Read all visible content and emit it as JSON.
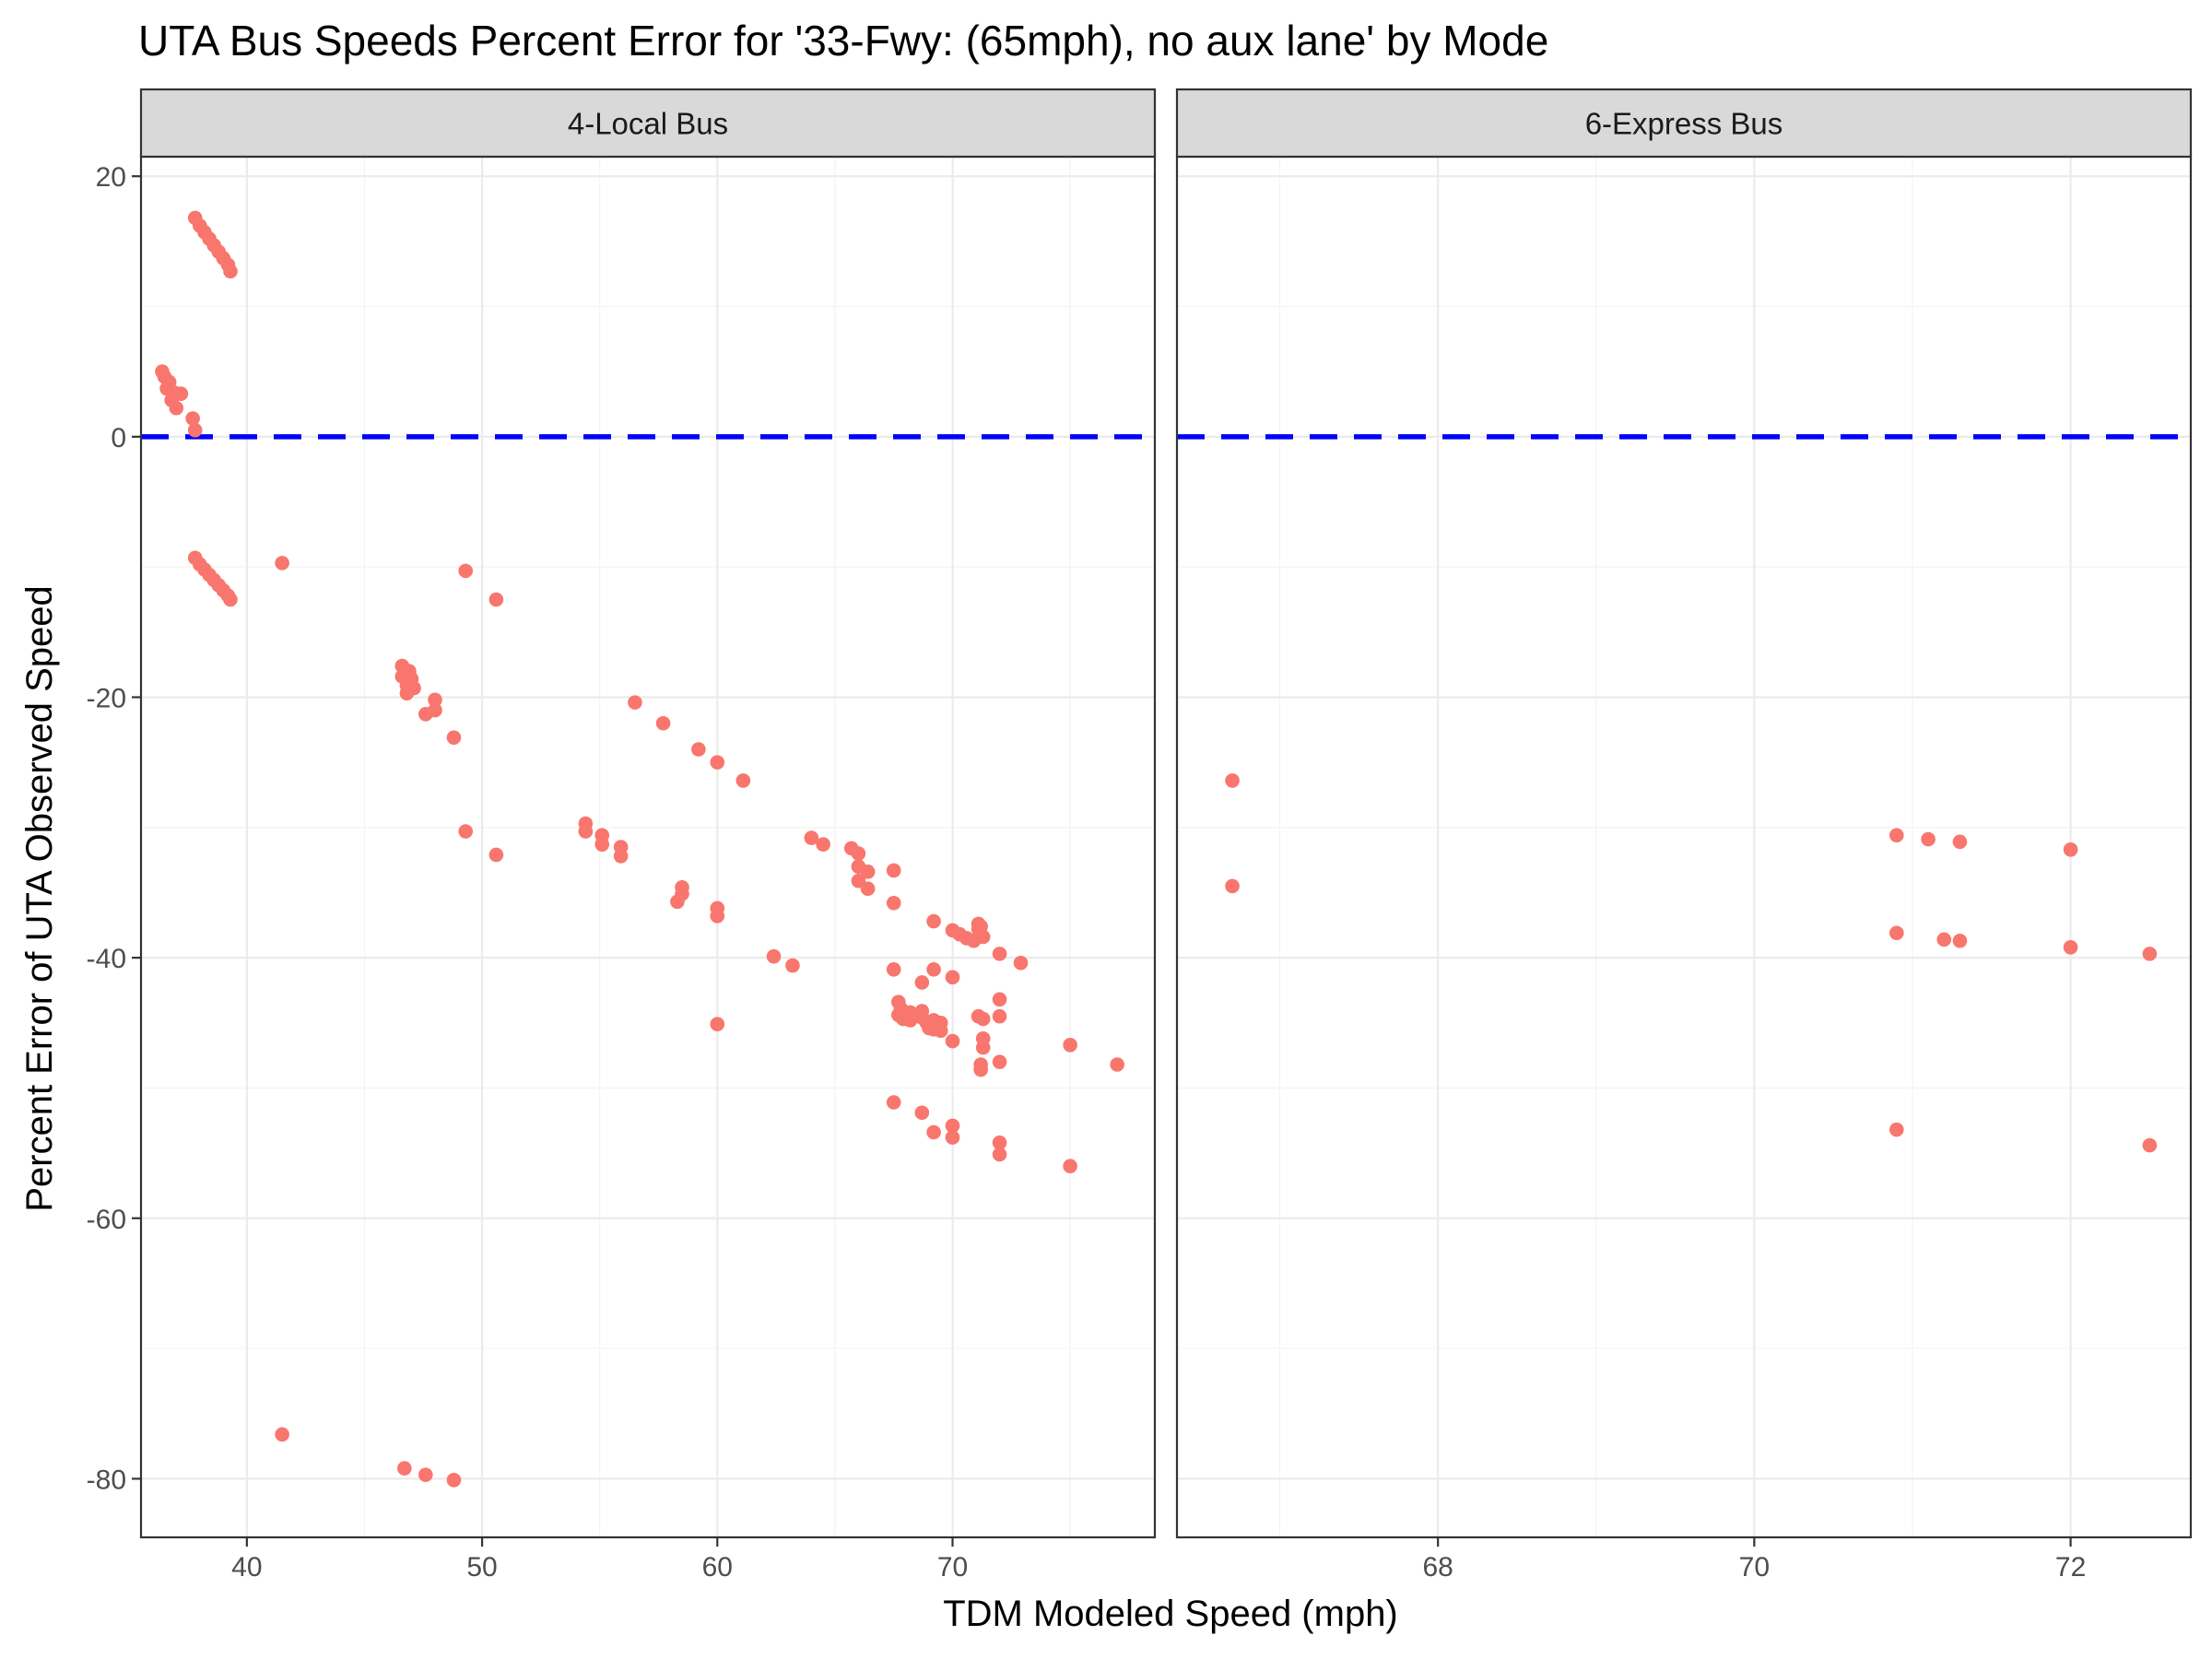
{
  "chart_data": {
    "type": "scatter",
    "title": "UTA Bus Speeds Percent Error for '33-Fwy: (65mph), no aux lane' by Mode",
    "xlabel": "TDM Modeled Speed (mph)",
    "ylabel": "Percent Error of UTA Observed Speed",
    "ylim": [
      -84.5,
      21.5
    ],
    "y_ticks": [
      20,
      0,
      -20,
      -40,
      -60,
      -80
    ],
    "reference_line": {
      "y": 0,
      "style": "dashed",
      "color": "#0000ff"
    },
    "point_color": "#f8766d",
    "grid": true,
    "legend": "none",
    "panels": [
      {
        "name": "4-Local Bus",
        "xlim": [
          35.5,
          78.6
        ],
        "x_ticks": [
          40,
          50,
          60,
          70
        ],
        "points": [
          [
            37.8,
            16.8
          ],
          [
            38.0,
            16.2
          ],
          [
            38.2,
            15.7
          ],
          [
            38.4,
            15.2
          ],
          [
            38.6,
            14.7
          ],
          [
            38.8,
            14.2
          ],
          [
            39.0,
            13.7
          ],
          [
            39.2,
            13.2
          ],
          [
            39.3,
            12.7
          ],
          [
            36.4,
            5.0
          ],
          [
            36.5,
            4.6
          ],
          [
            36.7,
            4.2
          ],
          [
            36.6,
            3.7
          ],
          [
            36.9,
            3.4
          ],
          [
            37.2,
            3.3
          ],
          [
            36.8,
            2.8
          ],
          [
            37.0,
            2.2
          ],
          [
            37.7,
            1.4
          ],
          [
            37.8,
            0.5
          ],
          [
            37.8,
            -9.3
          ],
          [
            38.0,
            -9.8
          ],
          [
            38.2,
            -10.2
          ],
          [
            38.4,
            -10.6
          ],
          [
            38.6,
            -11.0
          ],
          [
            38.8,
            -11.4
          ],
          [
            39.0,
            -11.8
          ],
          [
            39.2,
            -12.2
          ],
          [
            39.3,
            -12.5
          ],
          [
            41.5,
            -9.7
          ],
          [
            49.3,
            -10.3
          ],
          [
            50.6,
            -12.5
          ],
          [
            46.6,
            -17.6
          ],
          [
            46.6,
            -18.4
          ],
          [
            46.9,
            -18.0
          ],
          [
            47.0,
            -18.6
          ],
          [
            46.8,
            -19.1
          ],
          [
            47.1,
            -19.3
          ],
          [
            46.8,
            -19.7
          ],
          [
            47.6,
            -21.3
          ],
          [
            48.0,
            -20.2
          ],
          [
            48.0,
            -21.0
          ],
          [
            48.8,
            -23.1
          ],
          [
            49.3,
            -30.3
          ],
          [
            50.6,
            -32.1
          ],
          [
            54.4,
            -29.7
          ],
          [
            54.4,
            -30.3
          ],
          [
            55.1,
            -30.6
          ],
          [
            55.1,
            -31.3
          ],
          [
            55.9,
            -31.5
          ],
          [
            55.9,
            -32.2
          ],
          [
            56.5,
            -20.4
          ],
          [
            57.7,
            -22.0
          ],
          [
            59.2,
            -24.0
          ],
          [
            60.0,
            -25.0
          ],
          [
            61.1,
            -26.4
          ],
          [
            58.5,
            -34.6
          ],
          [
            58.5,
            -35.1
          ],
          [
            58.3,
            -35.7
          ],
          [
            60.0,
            -36.2
          ],
          [
            60.0,
            -36.8
          ],
          [
            60.0,
            -45.1
          ],
          [
            62.4,
            -39.9
          ],
          [
            63.2,
            -40.6
          ],
          [
            64.0,
            -30.8
          ],
          [
            64.5,
            -31.3
          ],
          [
            65.7,
            -31.6
          ],
          [
            66.0,
            -32.0
          ],
          [
            66.0,
            -33.0
          ],
          [
            66.4,
            -33.4
          ],
          [
            66.0,
            -34.1
          ],
          [
            66.4,
            -34.7
          ],
          [
            67.5,
            -33.3
          ],
          [
            67.5,
            -35.8
          ],
          [
            67.5,
            -40.9
          ],
          [
            67.7,
            -43.4
          ],
          [
            67.8,
            -43.9
          ],
          [
            67.7,
            -44.4
          ],
          [
            67.9,
            -44.7
          ],
          [
            68.2,
            -44.2
          ],
          [
            68.2,
            -44.8
          ],
          [
            68.7,
            -41.9
          ],
          [
            68.7,
            -44.1
          ],
          [
            68.7,
            -44.6
          ],
          [
            68.9,
            -45.0
          ],
          [
            69.0,
            -45.4
          ],
          [
            69.2,
            -44.8
          ],
          [
            69.2,
            -45.5
          ],
          [
            69.5,
            -45.0
          ],
          [
            69.5,
            -45.6
          ],
          [
            69.2,
            -37.2
          ],
          [
            69.2,
            -40.9
          ],
          [
            70.0,
            -41.5
          ],
          [
            70.0,
            -46.4
          ],
          [
            70.0,
            -37.9
          ],
          [
            70.3,
            -38.2
          ],
          [
            70.6,
            -38.5
          ],
          [
            70.9,
            -38.7
          ],
          [
            71.1,
            -37.4
          ],
          [
            71.1,
            -37.8
          ],
          [
            71.3,
            -38.4
          ],
          [
            71.2,
            -37.6
          ],
          [
            71.1,
            -44.5
          ],
          [
            71.3,
            -44.7
          ],
          [
            71.3,
            -46.2
          ],
          [
            71.3,
            -46.9
          ],
          [
            71.2,
            -48.2
          ],
          [
            71.2,
            -48.6
          ],
          [
            72.0,
            -39.7
          ],
          [
            72.0,
            -43.2
          ],
          [
            72.0,
            -44.5
          ],
          [
            72.0,
            -48.0
          ],
          [
            72.9,
            -40.4
          ],
          [
            75.0,
            -46.7
          ],
          [
            77.0,
            -48.2
          ],
          [
            67.5,
            -51.1
          ],
          [
            68.7,
            -51.9
          ],
          [
            69.2,
            -53.4
          ],
          [
            70.0,
            -52.9
          ],
          [
            70.0,
            -53.8
          ],
          [
            72.0,
            -54.2
          ],
          [
            72.0,
            -55.1
          ],
          [
            75.0,
            -56.0
          ],
          [
            41.5,
            -76.6
          ],
          [
            46.7,
            -79.2
          ],
          [
            47.6,
            -79.7
          ],
          [
            48.8,
            -80.1
          ]
        ]
      },
      {
        "name": "6-Express Bus",
        "xlim": [
          66.35,
          72.76
        ],
        "x_ticks": [
          68,
          70,
          72
        ],
        "points": [
          [
            66.7,
            -26.4
          ],
          [
            66.7,
            -34.5
          ],
          [
            70.9,
            -30.6
          ],
          [
            71.1,
            -30.9
          ],
          [
            71.3,
            -31.1
          ],
          [
            72.0,
            -31.7
          ],
          [
            70.9,
            -38.1
          ],
          [
            71.2,
            -38.6
          ],
          [
            71.3,
            -38.7
          ],
          [
            72.0,
            -39.2
          ],
          [
            72.5,
            -39.7
          ],
          [
            70.9,
            -53.2
          ],
          [
            72.5,
            -54.4
          ]
        ]
      }
    ]
  }
}
